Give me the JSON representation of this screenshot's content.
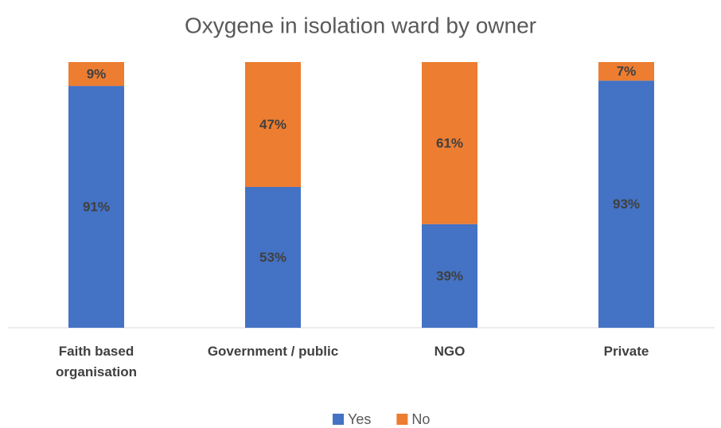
{
  "chart_data": {
    "type": "stacked_bar_100",
    "title": "Oxygene in isolation ward by owner",
    "categories": [
      "Faith based organisation",
      "Government / public",
      "NGO",
      "Private"
    ],
    "series": [
      {
        "name": "Yes",
        "color": "#4472c4",
        "values": [
          91,
          53,
          39,
          93
        ],
        "value_labels": [
          "91%",
          "53%",
          "39%",
          "93%"
        ]
      },
      {
        "name": "No",
        "color": "#ed7d31",
        "values": [
          9,
          47,
          61,
          7
        ],
        "value_labels": [
          "9%",
          "47%",
          "61%",
          "7%"
        ]
      }
    ],
    "legend": "bottom"
  }
}
